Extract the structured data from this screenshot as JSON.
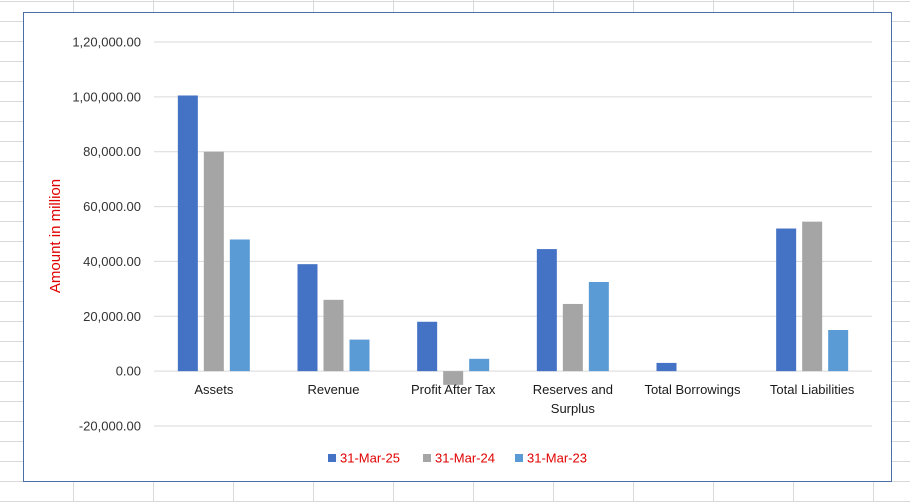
{
  "chart_data": {
    "type": "bar",
    "title": "",
    "xlabel": "",
    "ylabel": "Amount in million",
    "ylim": [
      -20000,
      120000
    ],
    "yticks": [
      -20000,
      0,
      20000,
      40000,
      60000,
      80000,
      100000,
      120000
    ],
    "ytick_labels": [
      "-20,000.00",
      "0.00",
      "20,000.00",
      "40,000.00",
      "60,000.00",
      "80,000.00",
      "1,00,000.00",
      "1,20,000.00"
    ],
    "categories": [
      [
        "Assets"
      ],
      [
        "Revenue"
      ],
      [
        "Profit After Tax"
      ],
      [
        "Reserves and",
        "Surplus"
      ],
      [
        "Total Borrowings"
      ],
      [
        "Total Liabilities"
      ]
    ],
    "series": [
      {
        "name": "31-Mar-25",
        "color": "#4472C4",
        "values": [
          100500,
          39000,
          18000,
          44500,
          3000,
          52000
        ]
      },
      {
        "name": "31-Mar-24",
        "color": "#A5A5A5",
        "values": [
          80000,
          26000,
          -5000,
          24500,
          0,
          54500
        ]
      },
      {
        "name": "31-Mar-23",
        "color": "#5B9BD5",
        "values": [
          48000,
          11500,
          4500,
          32500,
          0,
          15000
        ]
      }
    ],
    "grid": true,
    "legend_position": "bottom"
  },
  "colors": {
    "axis_title": "#E00000",
    "legend_text": "#E00000",
    "gridline": "#D9D9D9",
    "chart_border": "#4A6FA5"
  }
}
